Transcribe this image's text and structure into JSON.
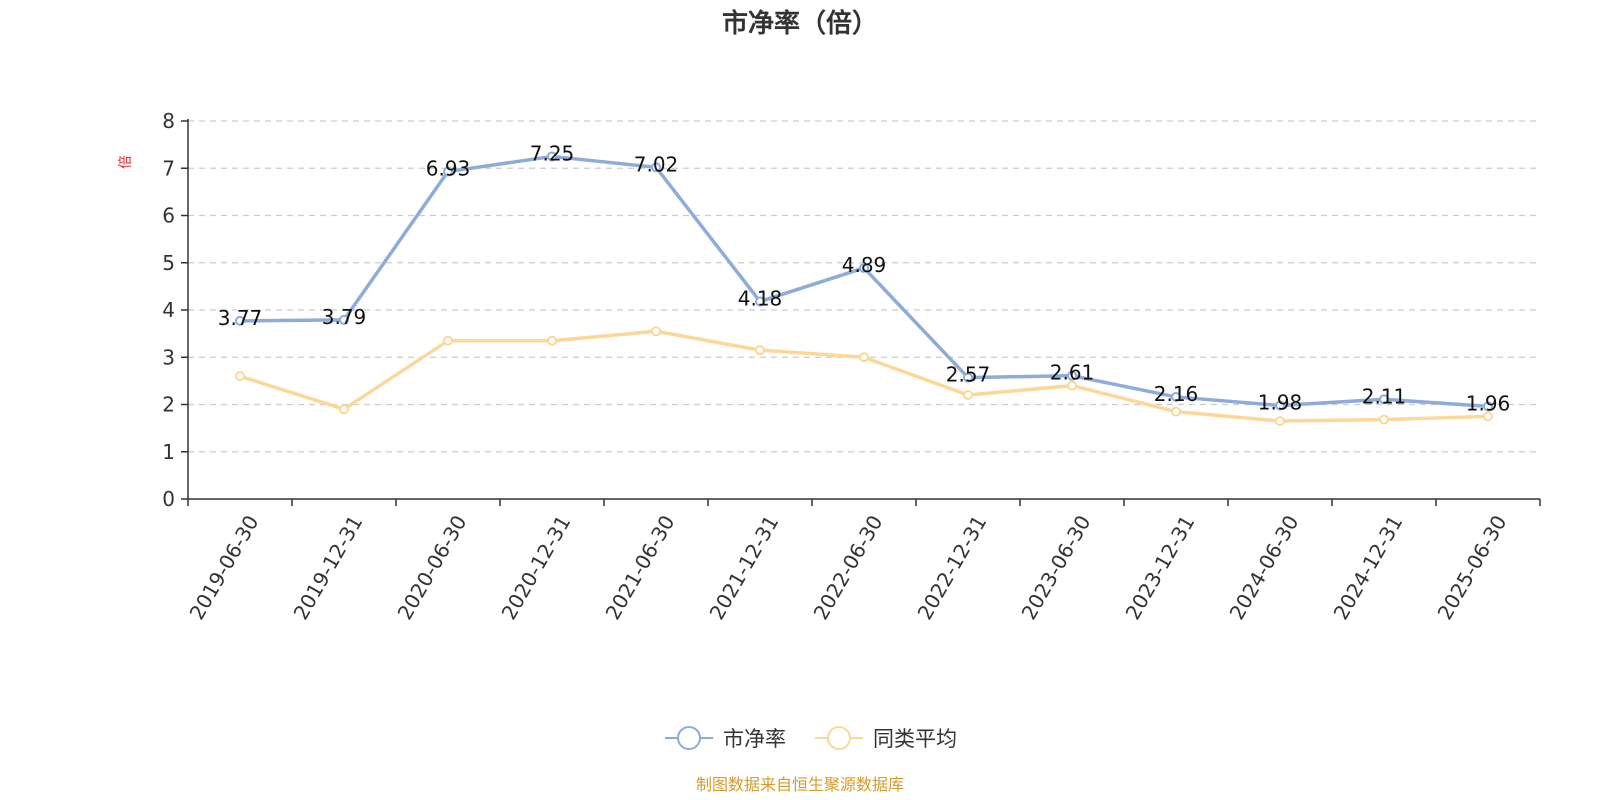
{
  "chart_data": {
    "type": "line",
    "title": "市净率（倍）",
    "ylabel": "倍",
    "ylim": [
      0,
      8
    ],
    "yticks": [
      0,
      1,
      2,
      3,
      4,
      5,
      6,
      7,
      8
    ],
    "categories": [
      "2019-06-30",
      "2019-12-31",
      "2020-06-30",
      "2020-12-31",
      "2021-06-30",
      "2021-12-31",
      "2022-06-30",
      "2022-12-31",
      "2023-06-30",
      "2023-12-31",
      "2024-06-30",
      "2024-12-31",
      "2025-06-30"
    ],
    "series": [
      {
        "name": "市净率",
        "color": "#8eacd8",
        "show_labels": true,
        "values": [
          3.77,
          3.79,
          6.93,
          7.25,
          7.02,
          4.18,
          4.89,
          2.57,
          2.61,
          2.16,
          1.98,
          2.11,
          1.96
        ]
      },
      {
        "name": "同类平均",
        "color": "#fcd898",
        "show_labels": false,
        "values": [
          2.6,
          1.9,
          3.35,
          3.35,
          3.55,
          3.15,
          3.0,
          2.2,
          2.4,
          1.85,
          1.65,
          1.68,
          1.75
        ]
      }
    ],
    "grid": true,
    "legend_position": "bottom",
    "source_note": "制图数据来自恒生聚源数据库",
    "colors": {
      "axis": "#333333",
      "grid": "#cccccc",
      "ylabel": "#e8262d",
      "source": "#d89a2c"
    }
  }
}
